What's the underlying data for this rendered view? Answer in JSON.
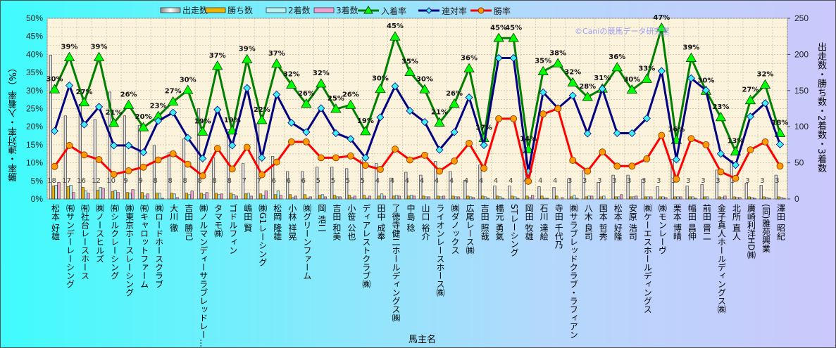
{
  "chart_data": {
    "type": "bar+line",
    "xlabel": "馬主名",
    "ylabel_left": "勝率・連対率・入着率（%）",
    "ylabel_right": "出走数・勝ち数・2着数・3着数",
    "ylim_left": [
      0,
      50
    ],
    "ylim_right": [
      0,
      250
    ],
    "yticks_left": [
      "0%",
      "5%",
      "10%",
      "15%",
      "20%",
      "25%",
      "30%",
      "35%",
      "40%",
      "45%",
      "50%"
    ],
    "yticks_right": [
      "0",
      "50",
      "100",
      "150",
      "200",
      "250"
    ],
    "grid": true,
    "legend_position": "top",
    "legend": [
      "出走数",
      "勝ち数",
      "2着数",
      "3着数",
      "入着率",
      "連対率",
      "勝率"
    ],
    "watermark": "©Caniの競馬データ研究室",
    "categories": [
      "松本 好雄",
      "㈲サンデーレーシング",
      "㈲社台レースホース",
      "㈱ノースヒルズ",
      "㈲シルクレーシング",
      "㈱東京ホースレーシング",
      "㈲キャロットファーム",
      "㈱ロードホースクラブ",
      "大川 徹",
      "吉田 勝己",
      "㈱ノルマンディーサラブレッドレー…",
      "タマモ㈱",
      "ゴドルフィン",
      "嶋田 賢",
      "㈱G1レーシング",
      "松岡 隆雄",
      "小林 祥晃",
      "㈱グリーンファーム",
      "岡 浩二",
      "吉田 和美",
      "小笹 公也",
      "ディアレストクラブ㈱",
      "田中 成奉",
      "了徳寺健二ホールディングス㈱",
      "中島 稔",
      "山口 裕介",
      "ライオンレースホース㈱",
      "㈱ダノックス",
      "広尾レース㈱",
      "吉田 照哉",
      "橋元 勇氣",
      "STレーシング",
      "岡田 牧雄",
      "石川 達絵",
      "寺田 千代乃",
      "㈱サラブレッドクラブ・ラフィアン",
      "八木 良司",
      "国本 哲秀",
      "松本 好隆",
      "安原 浩司",
      "㈱ケーエスホールディングス",
      "㈱モンレーヴ",
      "栗本 博晴",
      "幅田 昌伸",
      "前田 晋二",
      "金子真人ホールディングス㈱",
      "北所 直人",
      "廣崎利洋HD㈱",
      "(同)雅苑興業",
      "澤田 昭紀"
    ],
    "series": [
      {
        "name": "出走数",
        "axis": "right",
        "type": "bar",
        "color": "#e8e8e8",
        "values": [
          199,
          115,
          131,
          110,
          148,
          115,
          102,
          74,
          64,
          83,
          125,
          57,
          96,
          49,
          104,
          59,
          38,
          38,
          44,
          44,
          42,
          54,
          49,
          29,
          37,
          33,
          52,
          38,
          26,
          47,
          18,
          18,
          81,
          17,
          16,
          28,
          39,
          23,
          33,
          33,
          27,
          17,
          55,
          18,
          20,
          40,
          53,
          22,
          19,
          33
        ]
      },
      {
        "name": "勝ち数",
        "axis": "right",
        "type": "bar",
        "color": "#f0b400",
        "values": [
          18,
          17,
          16,
          12,
          10,
          9,
          9,
          8,
          8,
          8,
          8,
          8,
          8,
          7,
          7,
          6,
          6,
          6,
          5,
          5,
          5,
          5,
          4,
          4,
          4,
          4,
          4,
          4,
          4,
          4,
          4,
          4,
          4,
          4,
          4,
          3,
          3,
          3,
          3,
          3,
          3,
          3,
          3,
          3,
          3,
          3,
          3,
          3,
          3,
          3
        ]
      },
      {
        "name": "2着数",
        "axis": "right",
        "type": "bar",
        "color": "#b8f0f0",
        "values": [
          19,
          19,
          11,
          16,
          12,
          8,
          4,
          8,
          7,
          6,
          6,
          6,
          6,
          8,
          5,
          11,
          2,
          1,
          6,
          3,
          2,
          1,
          7,
          5,
          5,
          3,
          3,
          3,
          3,
          3,
          3,
          3,
          2,
          1,
          0,
          5,
          4,
          4,
          3,
          3,
          3,
          3,
          3,
          3,
          3,
          2,
          2,
          2,
          2,
          2
        ]
      },
      {
        "name": "3着数",
        "axis": "right",
        "type": "bar",
        "color": "#f0a0d0",
        "values": [
          23,
          9,
          8,
          15,
          9,
          13,
          7,
          1,
          2,
          11,
          9,
          7,
          4,
          4,
          11,
          5,
          4,
          3,
          3,
          3,
          4,
          4,
          4,
          4,
          4,
          3,
          4,
          3,
          2,
          1,
          1,
          1,
          5,
          1,
          2,
          1,
          4,
          0,
          6,
          4,
          3,
          2,
          3,
          1,
          0,
          4,
          2,
          1,
          1,
          1
        ]
      },
      {
        "name": "入着率",
        "axis": "left",
        "type": "line",
        "color": "#008000",
        "marker": "#00ff00",
        "values": [
          30.3,
          39.2,
          26.7,
          39.2,
          21.0,
          26.0,
          19.8,
          22.9,
          26.9,
          30.1,
          18.6,
          36.8,
          18.9,
          38.6,
          21.8,
          37.4,
          31.6,
          26.3,
          31.9,
          24.9,
          26.0,
          18.7,
          30.4,
          44.9,
          35.1,
          30.3,
          21.1,
          26.3,
          36.1,
          16.8,
          44.5,
          44.5,
          13.7,
          35.3,
          37.5,
          32.2,
          28.2,
          30.5,
          36.4,
          30.2,
          33.2,
          47.3,
          16.3,
          39.0,
          29.9,
          22.6,
          13.1,
          27.3,
          31.6,
          18.2
        ]
      },
      {
        "name": "連対率",
        "axis": "left",
        "type": "line",
        "color": "#000080",
        "marker": "#40f0f0",
        "values": [
          18.8,
          31.4,
          20.6,
          25.5,
          14.8,
          14.8,
          12.9,
          21.6,
          23.9,
          16.9,
          11.2,
          24.7,
          14.8,
          30.7,
          11.4,
          28.9,
          21.1,
          18.5,
          25.1,
          18.2,
          16.6,
          11.4,
          22.6,
          31.2,
          24.4,
          21.3,
          13.6,
          18.5,
          28.1,
          14.9,
          39.0,
          39.0,
          7.5,
          29.5,
          25.1,
          28.6,
          18.1,
          30.5,
          18.2,
          18.2,
          22.3,
          35.4,
          10.9,
          33.4,
          30.1,
          12.5,
          9.4,
          22.8,
          26.5,
          15.1
        ]
      },
      {
        "name": "勝率",
        "axis": "left",
        "type": "line",
        "color": "#ff0000",
        "marker": "#ff9a00",
        "values": [
          9.0,
          14.8,
          12.2,
          10.9,
          6.8,
          7.8,
          8.8,
          10.8,
          12.5,
          9.6,
          6.4,
          14.0,
          8.3,
          14.3,
          6.7,
          10.2,
          15.8,
          15.8,
          11.4,
          11.4,
          11.9,
          9.3,
          8.2,
          13.8,
          10.8,
          12.1,
          7.7,
          10.5,
          15.4,
          8.5,
          22.2,
          22.2,
          4.9,
          23.5,
          25.0,
          10.7,
          7.7,
          13.0,
          9.1,
          9.1,
          11.1,
          17.6,
          5.5,
          16.7,
          15.0,
          7.5,
          5.7,
          13.6,
          15.8,
          9.1
        ]
      }
    ]
  }
}
